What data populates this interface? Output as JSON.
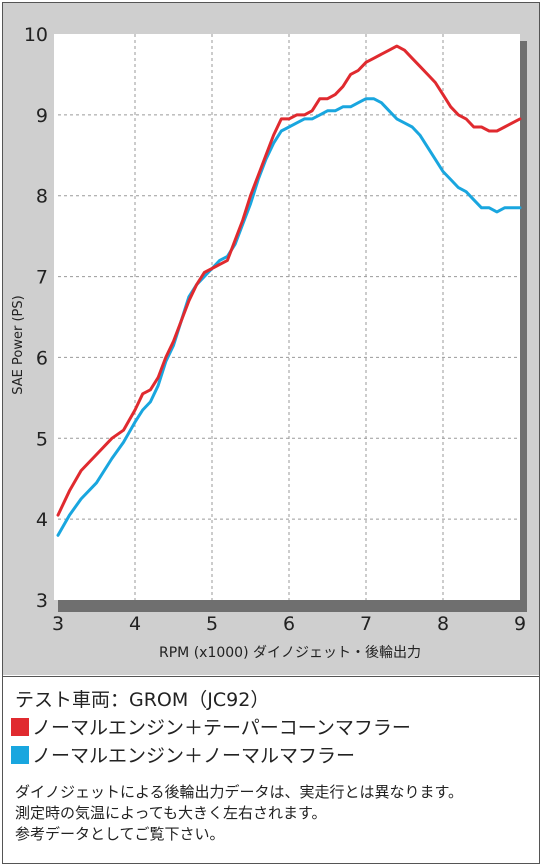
{
  "chart_data": {
    "type": "line",
    "xlabel": "RPM (x1000) ダイノジェット・後輪出力",
    "ylabel": "SAE Power (PS)",
    "xlim": [
      3,
      9
    ],
    "ylim": [
      3,
      10
    ],
    "x_ticks": [
      "3",
      "4",
      "5",
      "6",
      "7",
      "8",
      "9"
    ],
    "y_ticks": [
      "3",
      "4",
      "5",
      "6",
      "7",
      "8",
      "9",
      "10"
    ],
    "grid": true,
    "series": [
      {
        "name": "ノーマルエンジン＋テーパーコーンマフラー",
        "color": "#e02a2f",
        "x": [
          3.0,
          3.15,
          3.3,
          3.5,
          3.7,
          3.85,
          4.0,
          4.1,
          4.2,
          4.3,
          4.4,
          4.5,
          4.6,
          4.7,
          4.8,
          4.9,
          5.0,
          5.1,
          5.2,
          5.3,
          5.4,
          5.5,
          5.6,
          5.7,
          5.8,
          5.9,
          6.0,
          6.1,
          6.2,
          6.3,
          6.4,
          6.5,
          6.6,
          6.7,
          6.8,
          6.9,
          7.0,
          7.1,
          7.2,
          7.3,
          7.4,
          7.5,
          7.6,
          7.7,
          7.8,
          7.9,
          8.0,
          8.1,
          8.2,
          8.3,
          8.4,
          8.5,
          8.6,
          8.7,
          8.8,
          8.9,
          9.0
        ],
        "values": [
          4.05,
          4.35,
          4.6,
          4.8,
          5.0,
          5.1,
          5.35,
          5.55,
          5.6,
          5.75,
          6.0,
          6.2,
          6.45,
          6.7,
          6.9,
          7.05,
          7.1,
          7.15,
          7.2,
          7.45,
          7.7,
          8.0,
          8.25,
          8.5,
          8.75,
          8.95,
          8.95,
          9.0,
          9.0,
          9.05,
          9.2,
          9.2,
          9.25,
          9.35,
          9.5,
          9.55,
          9.65,
          9.7,
          9.75,
          9.8,
          9.85,
          9.8,
          9.7,
          9.6,
          9.5,
          9.4,
          9.25,
          9.1,
          9.0,
          8.95,
          8.85,
          8.85,
          8.8,
          8.8,
          8.85,
          8.9,
          8.95
        ]
      },
      {
        "name": "ノーマルエンジン＋ノーマルマフラー",
        "color": "#19a6df",
        "x": [
          3.0,
          3.15,
          3.3,
          3.5,
          3.7,
          3.85,
          4.0,
          4.1,
          4.2,
          4.3,
          4.4,
          4.5,
          4.6,
          4.7,
          4.8,
          4.9,
          5.0,
          5.1,
          5.2,
          5.3,
          5.4,
          5.5,
          5.6,
          5.7,
          5.8,
          5.9,
          6.0,
          6.1,
          6.2,
          6.3,
          6.4,
          6.5,
          6.6,
          6.7,
          6.8,
          6.9,
          7.0,
          7.1,
          7.2,
          7.3,
          7.4,
          7.5,
          7.6,
          7.7,
          7.8,
          7.9,
          8.0,
          8.1,
          8.2,
          8.3,
          8.4,
          8.5,
          8.6,
          8.7,
          8.8,
          8.9,
          9.0
        ],
        "values": [
          3.8,
          4.05,
          4.25,
          4.45,
          4.75,
          4.95,
          5.2,
          5.35,
          5.45,
          5.65,
          5.95,
          6.15,
          6.45,
          6.75,
          6.9,
          7.0,
          7.1,
          7.2,
          7.25,
          7.4,
          7.65,
          7.9,
          8.2,
          8.45,
          8.65,
          8.8,
          8.85,
          8.9,
          8.95,
          8.95,
          9.0,
          9.05,
          9.05,
          9.1,
          9.1,
          9.15,
          9.2,
          9.2,
          9.15,
          9.05,
          8.95,
          8.9,
          8.85,
          8.75,
          8.6,
          8.45,
          8.3,
          8.2,
          8.1,
          8.05,
          7.95,
          7.85,
          7.85,
          7.8,
          7.85,
          7.85,
          7.85
        ]
      }
    ]
  },
  "legend": {
    "test_vehicle": "テスト車両：GROM（JC92）",
    "items": [
      {
        "label": "ノーマルエンジン＋テーパーコーンマフラー",
        "color": "#e02a2f"
      },
      {
        "label": "ノーマルエンジン＋ノーマルマフラー",
        "color": "#19a6df"
      }
    ]
  },
  "notes": [
    "ダイノジェットによる後輪出力データは、実走行とは異なります。",
    "測定時の気温によっても大きく左右されます。",
    "参考データとしてご覧下さい。"
  ]
}
